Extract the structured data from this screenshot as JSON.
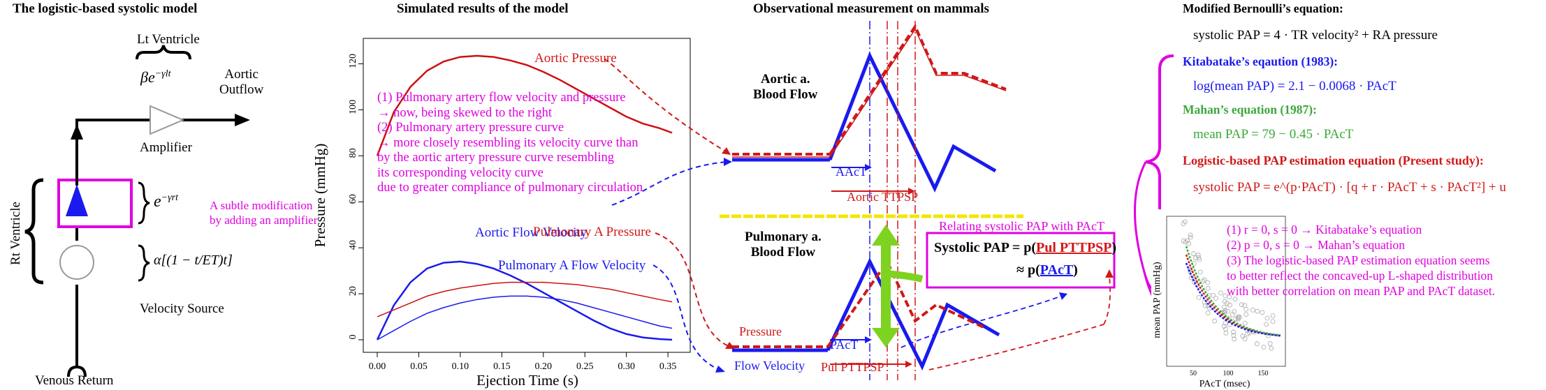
{
  "titles": {
    "model": "The logistic-based systolic model",
    "simulated": "Simulated results of the model",
    "observational": "Observational measurement on mammals",
    "bernoulli": "Modified Bernoulli’s equation:"
  },
  "model": {
    "lt_ventricle": "Lt Ventricle",
    "aortic_outflow_1": "Aortic",
    "aortic_outflow_2": "Outflow",
    "amplifier": "Amplifier",
    "rt_ventricle": "Rt Ventricle",
    "velocity_source": "Velocity Source",
    "venous_return": "Venous Return",
    "subtle_mod_1": "A subtle modification",
    "subtle_mod_2": "by adding an amplifier",
    "beta_expr": "βe",
    "beta_exp": "−γlt",
    "e_expr": "e",
    "e_exp": "−γrt",
    "alpha_expr": "α[(1 − t/ET)t]"
  },
  "sim": {
    "notes": [
      "(1) Pulmonary artery flow velocity and pressure",
      "→ now, being skewed to the right",
      "(2) Pulmonary artery pressure curve",
      "→ more closely resembling its velocity curve than",
      "by the aortic artery pressure curve resembling",
      "its corresponding velocity curve",
      "due to greater compliance of pulmonary circulation"
    ],
    "label_aortic_pressure": "Aortic Pressure",
    "label_aortic_flow": "Aortic Flow Velocity",
    "label_pulm_pressure": "Pulmonary A Pressure",
    "label_pulm_flow": "Pulmonary A Flow Velocity"
  },
  "chart_data": {
    "type": "line",
    "xlabel": "Ejection Time (s)",
    "ylabel": "Pressure (mmHg)",
    "xlim": [
      0.0,
      0.36
    ],
    "ylim": [
      0,
      125
    ],
    "xticks": [
      "0.00",
      "0.05",
      "0.10",
      "0.15",
      "0.20",
      "0.25",
      "0.30",
      "0.35"
    ],
    "yticks": [
      "0",
      "20",
      "40",
      "60",
      "80",
      "100",
      "120"
    ],
    "x": [
      0.0,
      0.02,
      0.04,
      0.06,
      0.08,
      0.1,
      0.12,
      0.14,
      0.16,
      0.18,
      0.2,
      0.22,
      0.24,
      0.26,
      0.28,
      0.3,
      0.32,
      0.34,
      0.355
    ],
    "series": [
      {
        "name": "Aortic Pressure",
        "color": "#cc1111",
        "values": [
          80,
          99,
          110,
          117,
          121,
          123,
          123.5,
          123,
          121.5,
          119.5,
          116.5,
          113,
          109,
          105,
          101,
          97,
          94,
          92,
          90
        ]
      },
      {
        "name": "Aortic Flow Velocity",
        "color": "#1a1aee",
        "values": [
          0,
          15,
          25,
          31,
          33.5,
          34,
          33,
          31,
          28,
          24.5,
          20.5,
          16.5,
          12.5,
          8.5,
          5,
          2.5,
          1,
          0.3,
          0
        ]
      },
      {
        "name": "Pulmonary A Pressure",
        "color": "#cc1111",
        "values": [
          10,
          13,
          16,
          19,
          21,
          22.5,
          23.5,
          24.5,
          25,
          25,
          25,
          24.5,
          24,
          23,
          22,
          20.5,
          19,
          17.5,
          16.5
        ]
      },
      {
        "name": "Pulmonary A Flow Velocity",
        "color": "#1a1aee",
        "values": [
          0,
          4,
          8,
          11.5,
          14,
          16,
          17.5,
          18.5,
          19,
          19,
          18.5,
          17.5,
          16,
          14,
          12,
          10,
          8,
          6,
          5
        ]
      }
    ]
  },
  "obs": {
    "aortic_label_1": "Aortic a.",
    "aortic_label_2": "Blood Flow",
    "aact": "AAcT",
    "aortic_ttpsp": "Aortic TTPSP",
    "pulm_label_1": "Pulmonary a.",
    "pulm_label_2": "Blood Flow",
    "pressure": "Pressure",
    "flow_velocity": "Flow Velocity",
    "pact": "PAcT",
    "pul_ttpsp": "Pul PTTPSP",
    "relating": "Relating systolic PAP with PAcT",
    "systolic_pap": "Systolic PAP = p(",
    "pul_pttpsp": "Pul PTTPSP",
    "close_paren": ")",
    "approx": "≈ p(",
    "pact_link": "PAcT",
    "approx_close": ")"
  },
  "equations": {
    "bernoulli": "systolic PAP = 4 · TR velocity² + RA pressure",
    "kitabatake_title": "Kitabatake’s eqaution (1983):",
    "kitabatake": "log(mean PAP) = 2.1 − 0.0068 · PAcT",
    "mahan_title": "Mahan’s equation (1987):",
    "mahan": "mean PAP = 79 − 0.45 · PAcT",
    "logistic_title": "Logistic-based PAP estimation equation (Present study):",
    "logistic": "systolic PAP = e^(p·PAcT) · [q + r · PAcT + s · PAcT²] + u"
  },
  "scatter": {
    "xlabel": "PAcT (msec)",
    "ylabel": "mean PAP (mmHg)",
    "xticks": [
      "50",
      "100",
      "150"
    ],
    "notes": [
      "(1) r = 0, s = 0 → Kitabatake’s equation",
      "(2) p = 0, s = 0 → Mahan’s equation",
      "(3) The logistic-based PAP estimation equation seems",
      "to better reflect the concaved-up L-shaped distribution",
      "with better correlation on mean PAP and PAcT dataset."
    ]
  }
}
